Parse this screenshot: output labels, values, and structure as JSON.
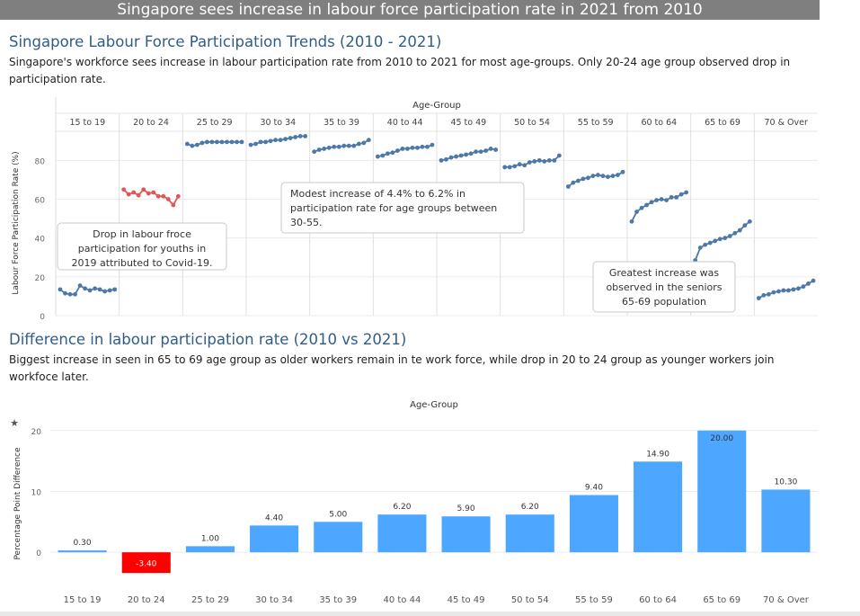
{
  "banner": {
    "title": "Singapore sees increase in labour force participation rate in 2021 from 2010"
  },
  "section1": {
    "title": "Singapore Labour Force Participation Trends (2010 - 2021)",
    "description": "Singapore's workforce sees increase in labour participation rate from 2010 to 2021 for most age-groups. Only 20-24 age group observed drop in participation rate."
  },
  "section2": {
    "title": "Difference in labour participation rate (2010 vs 2021)",
    "description": "Biggest increase in seen in 65 to 69 age group as older workers remain in te work force, while drop in 20 to 24 group as younger workers join workfoce later."
  },
  "chart_data": [
    {
      "type": "line",
      "title": "Age-Group",
      "ylabel": "Labour Force Participation Rate (%)",
      "ylim": [
        0,
        95
      ],
      "yticks": [
        0,
        20,
        40,
        60,
        80
      ],
      "grid": true,
      "x": [
        2010,
        2011,
        2012,
        2013,
        2014,
        2015,
        2016,
        2017,
        2018,
        2019,
        2020,
        2021
      ],
      "colors": {
        "normal": "#4e79a7",
        "highlight": "#e15759"
      },
      "panels": [
        {
          "name": "15 to 19",
          "values": [
            13.5,
            11.5,
            11.0,
            11.0,
            15.5,
            14.0,
            13.0,
            14.0,
            13.5,
            12.5,
            13.0,
            13.5
          ]
        },
        {
          "name": "20 to 24",
          "values": [
            65.0,
            62.5,
            63.5,
            62.0,
            65.0,
            63.0,
            63.5,
            61.5,
            61.5,
            60.0,
            57.0,
            61.5
          ],
          "highlight": true
        },
        {
          "name": "25 to 29",
          "values": [
            88.5,
            87.5,
            88.0,
            89.0,
            89.5,
            89.5,
            89.5,
            89.5,
            89.5,
            89.5,
            89.5,
            89.5
          ]
        },
        {
          "name": "30 to 34",
          "values": [
            88.0,
            88.5,
            89.5,
            89.5,
            90.0,
            90.5,
            90.5,
            91.0,
            91.5,
            92.0,
            92.5,
            92.5
          ]
        },
        {
          "name": "35 to 39",
          "values": [
            84.5,
            85.5,
            86.0,
            86.5,
            87.0,
            87.0,
            87.5,
            87.5,
            87.5,
            88.5,
            89.0,
            90.5
          ]
        },
        {
          "name": "40 to 44",
          "values": [
            82.0,
            82.5,
            83.5,
            84.0,
            85.0,
            86.0,
            86.0,
            86.5,
            86.5,
            87.0,
            87.0,
            88.0
          ]
        },
        {
          "name": "45 to 49",
          "values": [
            80.0,
            80.5,
            81.5,
            82.0,
            82.5,
            83.0,
            83.5,
            84.5,
            84.5,
            85.0,
            86.0,
            85.5
          ]
        },
        {
          "name": "50 to 54",
          "values": [
            76.5,
            76.5,
            77.0,
            78.0,
            77.5,
            79.0,
            79.5,
            80.0,
            79.5,
            80.0,
            80.0,
            82.5
          ]
        },
        {
          "name": "55 to 59",
          "values": [
            66.5,
            68.5,
            69.5,
            70.5,
            71.0,
            72.0,
            72.5,
            72.0,
            71.5,
            72.0,
            72.5,
            74.0
          ]
        },
        {
          "name": "60 to 64",
          "values": [
            48.5,
            53.5,
            55.5,
            57.0,
            58.5,
            59.5,
            60.0,
            59.5,
            61.0,
            61.0,
            62.5,
            63.5
          ]
        },
        {
          "name": "65 to 69",
          "values": [
            28.5,
            35.0,
            36.5,
            37.5,
            38.5,
            39.5,
            40.0,
            41.0,
            42.5,
            44.0,
            46.5,
            48.5
          ]
        },
        {
          "name": "70 & Over",
          "values": [
            9.0,
            10.5,
            11.0,
            12.0,
            12.5,
            13.0,
            13.0,
            13.5,
            14.0,
            15.0,
            16.5,
            18.0
          ]
        }
      ],
      "annotations": [
        {
          "text": [
            "Drop in labour froce",
            "participation for youths in",
            "2019 attributed to Covid-19."
          ]
        },
        {
          "text": [
            "Modest increase of 4.4% to 6.2% in",
            "participation rate for age groups between",
            "30-55."
          ]
        },
        {
          "text": [
            "Greatest increase was",
            "observed in the seniors",
            "65-69 population"
          ]
        }
      ]
    },
    {
      "type": "bar",
      "title": "Age-Group",
      "ylabel": "Percentage Point Difference",
      "ylim": [
        -5,
        21
      ],
      "yticks": [
        0,
        10,
        20
      ],
      "grid": true,
      "categories": [
        "15 to 19",
        "20 to 24",
        "25 to 29",
        "30 to 34",
        "35 to 39",
        "40 to 44",
        "45 to 49",
        "50 to 54",
        "55 to 59",
        "60 to 64",
        "65 to 69",
        "70 & Over"
      ],
      "values": [
        0.3,
        -3.4,
        1.0,
        4.4,
        5.0,
        6.2,
        5.9,
        6.2,
        9.4,
        14.9,
        20.0,
        10.3
      ],
      "labels": [
        "0.30",
        "-3.40",
        "1.00",
        "4.40",
        "5.00",
        "6.20",
        "5.90",
        "6.20",
        "9.40",
        "14.90",
        "20.00",
        "10.30"
      ],
      "colors": {
        "positive": "#4da6ff",
        "negative": "#ff0000"
      }
    }
  ]
}
